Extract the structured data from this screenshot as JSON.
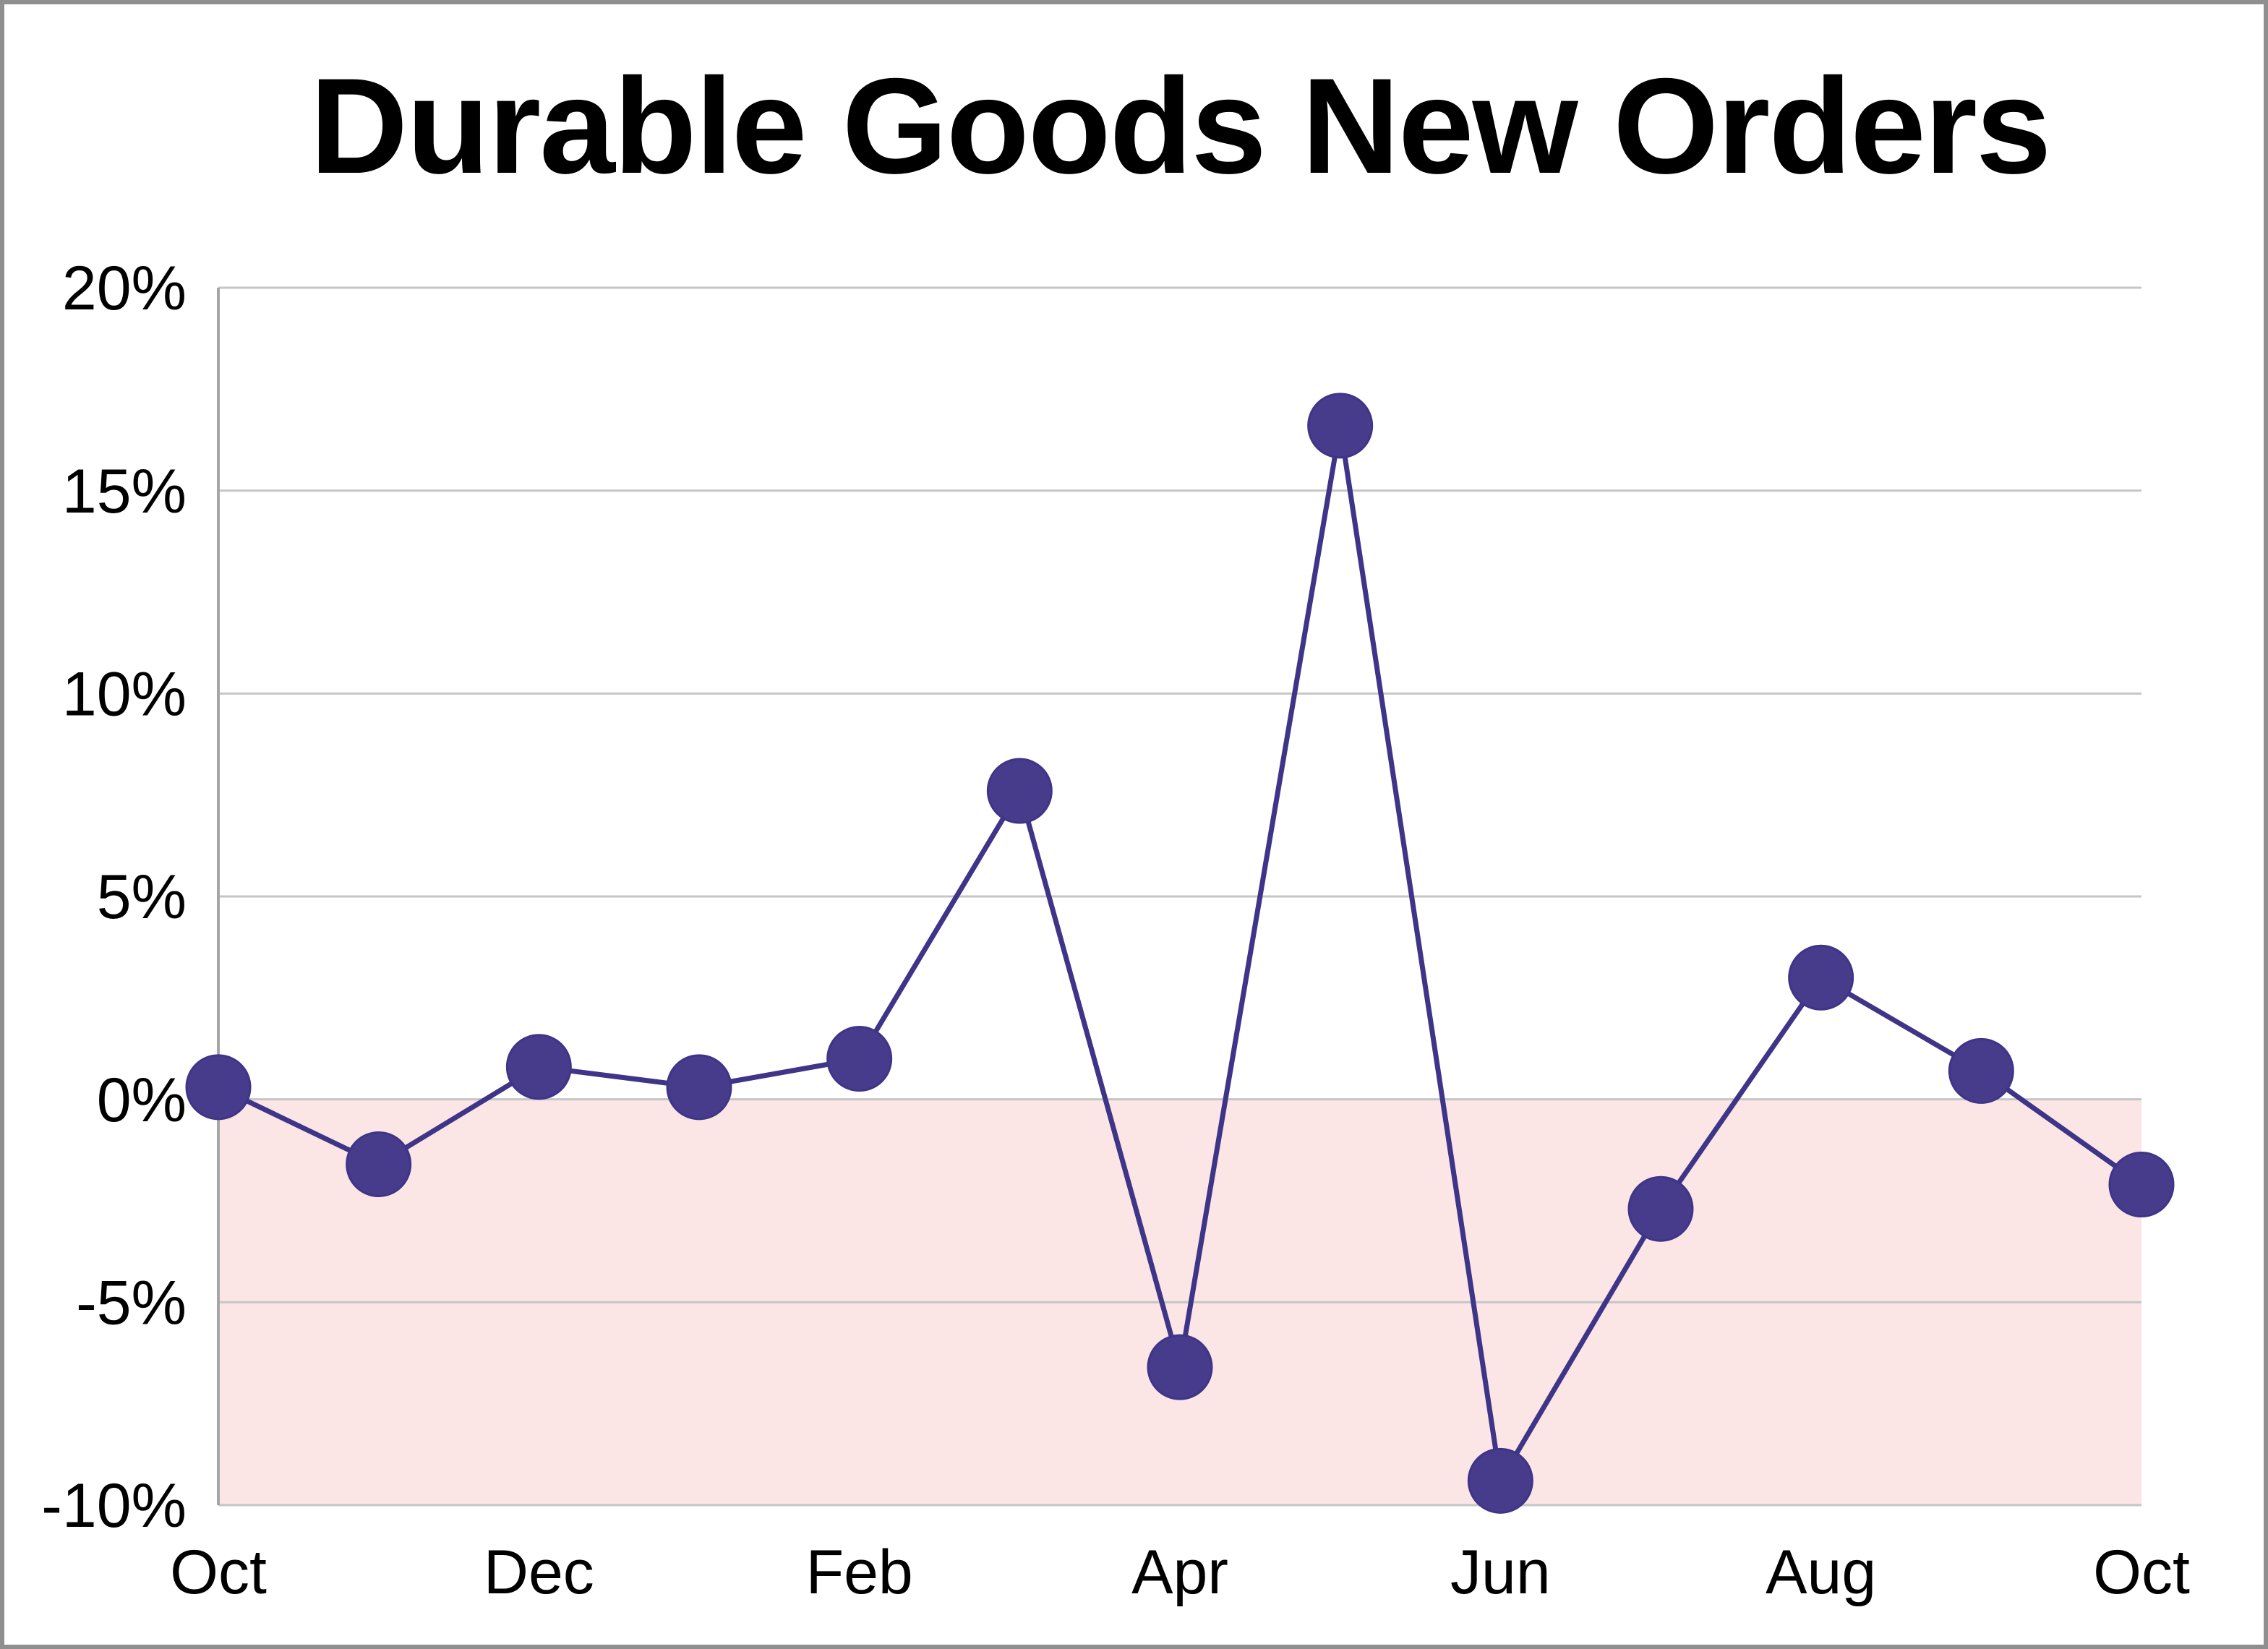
{
  "page": {
    "background_color": "#ffffff",
    "frame_border_color": "#8f8f8f"
  },
  "chart_data": {
    "type": "line",
    "title": "Durable Goods New Orders",
    "n_points": 13,
    "values": [
      0.3,
      -1.6,
      0.8,
      0.3,
      1.0,
      7.6,
      -6.6,
      16.6,
      -9.4,
      -2.7,
      3.0,
      0.7,
      -2.1
    ],
    "x_ticks": [
      {
        "index": 0,
        "label": "Oct"
      },
      {
        "index": 2,
        "label": "Dec"
      },
      {
        "index": 4,
        "label": "Feb"
      },
      {
        "index": 6,
        "label": "Apr"
      },
      {
        "index": 8,
        "label": "Jun"
      },
      {
        "index": 10,
        "label": "Aug"
      },
      {
        "index": 12,
        "label": "Oct"
      }
    ],
    "y_ticks": [
      {
        "value": 20,
        "label": "20%"
      },
      {
        "value": 15,
        "label": "15%"
      },
      {
        "value": 10,
        "label": "10%"
      },
      {
        "value": 5,
        "label": "5%"
      },
      {
        "value": 0,
        "label": "0%"
      },
      {
        "value": -5,
        "label": "-5%"
      },
      {
        "value": -10,
        "label": "-10%"
      }
    ],
    "ylim": [
      -10,
      20
    ],
    "grid": true,
    "legend": false,
    "styles": {
      "line_color": "#3e3588",
      "marker_color": "#473c8b",
      "marker_radius": 44,
      "line_width": 7,
      "negative_band": {
        "from": 0,
        "to": -10,
        "color": "#fbe5e5"
      },
      "grid_color": "#c6c6c6",
      "axis_color": "#a6a6a6",
      "tick_label_color": "#000000",
      "tick_font_size": 86
    },
    "layout": {
      "plot_left": 296,
      "plot_right": 2956,
      "plot_top": 392,
      "plot_bottom": 2076,
      "y_label_right_edge": 252,
      "x_label_baseline_offset": 122
    }
  }
}
